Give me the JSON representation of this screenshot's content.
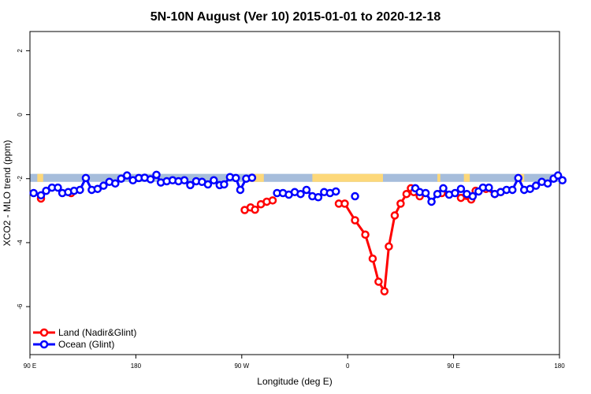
{
  "chart_data": {
    "type": "line",
    "title": "5N-10N August (Ver 10)   2015-01-01 to 2020-12-18",
    "xlabel": "Longitude (deg E)",
    "ylabel": "XCO2 - MLO trend (ppm)",
    "xlim": [
      90,
      450
    ],
    "ylim": [
      -7.5,
      2.6
    ],
    "x_ticks": [
      {
        "value": 90,
        "label": "90 E"
      },
      {
        "value": 162,
        "label": "180"
      },
      {
        "value": 234,
        "label": "90 W"
      },
      {
        "value": 306,
        "label": "0"
      },
      {
        "value": 378,
        "label": "90 E"
      },
      {
        "value": 450,
        "label": "180"
      }
    ],
    "y_ticks": [
      {
        "value": -6,
        "label": "-6"
      },
      {
        "value": -4,
        "label": "-4"
      },
      {
        "value": -2,
        "label": "-2"
      },
      {
        "value": 0,
        "label": "0"
      },
      {
        "value": 2,
        "label": "2"
      }
    ],
    "land_band": {
      "y_top": -1.85,
      "y_bottom": -2.1,
      "ocean_color": "#a6bddb",
      "land_color": "#fdd87a",
      "land_segments": [
        [
          95,
          99
        ],
        [
          239,
          249
        ],
        [
          282,
          330
        ],
        [
          367,
          369
        ],
        [
          385,
          389
        ],
        [
          422,
          426
        ]
      ]
    },
    "legend": {
      "position": "bottom-left"
    },
    "series": [
      {
        "name": "Land (Nadir&Glint)",
        "color": "#ff0000",
        "points": [
          [
            97.5,
            -2.62
          ],
          [
            118,
            -2.45
          ],
          [
            236,
            -2.98
          ],
          [
            240,
            -2.9
          ],
          [
            243,
            -2.97
          ],
          [
            247,
            -2.8
          ],
          [
            251,
            -2.72
          ],
          [
            255,
            -2.68
          ],
          [
            300,
            -2.78
          ],
          [
            304,
            -2.78
          ],
          [
            311,
            -3.3
          ],
          [
            318,
            -3.75
          ],
          [
            323,
            -4.5
          ],
          [
            327,
            -5.22
          ],
          [
            331,
            -5.52
          ],
          [
            334,
            -4.12
          ],
          [
            338,
            -3.15
          ],
          [
            342,
            -2.78
          ],
          [
            346,
            -2.48
          ],
          [
            349,
            -2.3
          ],
          [
            351,
            -2.42
          ],
          [
            355,
            -2.55
          ],
          [
            370,
            -2.45
          ],
          [
            383,
            -2.6
          ],
          [
            390,
            -2.65
          ],
          [
            393,
            -2.38
          ],
          [
            400,
            -2.32
          ],
          [
            406,
            -2.48
          ],
          [
            410,
            -2.42
          ]
        ]
      },
      {
        "name": "Ocean (Glint)",
        "color": "#0000ff",
        "points": [
          [
            92.5,
            -2.45
          ],
          [
            97.5,
            -2.52
          ],
          [
            101,
            -2.38
          ],
          [
            105,
            -2.28
          ],
          [
            109,
            -2.28
          ],
          [
            112,
            -2.45
          ],
          [
            116,
            -2.42
          ],
          [
            120,
            -2.38
          ],
          [
            124,
            -2.35
          ],
          [
            128,
            -1.98
          ],
          [
            132,
            -2.35
          ],
          [
            136,
            -2.32
          ],
          [
            140,
            -2.22
          ],
          [
            144,
            -2.1
          ],
          [
            148,
            -2.15
          ],
          [
            152,
            -2.0
          ],
          [
            156,
            -1.9
          ],
          [
            160,
            -2.05
          ],
          [
            164,
            -1.98
          ],
          [
            168,
            -1.97
          ],
          [
            172,
            -2.02
          ],
          [
            176,
            -1.88
          ],
          [
            179,
            -2.12
          ],
          [
            183,
            -2.08
          ],
          [
            187,
            -2.05
          ],
          [
            191,
            -2.08
          ],
          [
            195,
            -2.05
          ],
          [
            199,
            -2.2
          ],
          [
            203,
            -2.08
          ],
          [
            207,
            -2.1
          ],
          [
            211,
            -2.18
          ],
          [
            215,
            -2.05
          ],
          [
            219,
            -2.2
          ],
          [
            222,
            -2.18
          ],
          [
            226,
            -1.95
          ],
          [
            230,
            -1.98
          ],
          [
            233,
            -2.35
          ],
          [
            237,
            -2.0
          ],
          [
            241,
            -1.97
          ],
          [
            258,
            -2.45
          ],
          [
            262,
            -2.45
          ],
          [
            266,
            -2.5
          ],
          [
            270,
            -2.42
          ],
          [
            274,
            -2.48
          ],
          [
            278,
            -2.35
          ],
          [
            282,
            -2.55
          ],
          [
            286,
            -2.58
          ],
          [
            290,
            -2.42
          ],
          [
            294,
            -2.45
          ],
          [
            298,
            -2.4
          ],
          [
            311,
            -2.55
          ],
          [
            352,
            -2.3
          ],
          [
            355,
            -2.42
          ],
          [
            359,
            -2.45
          ],
          [
            363,
            -2.72
          ],
          [
            367,
            -2.48
          ],
          [
            371,
            -2.3
          ],
          [
            375,
            -2.5
          ],
          [
            379,
            -2.45
          ],
          [
            383,
            -2.32
          ],
          [
            387,
            -2.48
          ],
          [
            391,
            -2.55
          ],
          [
            395,
            -2.4
          ],
          [
            398,
            -2.28
          ],
          [
            402,
            -2.28
          ],
          [
            406,
            -2.48
          ],
          [
            410,
            -2.42
          ],
          [
            414,
            -2.35
          ],
          [
            418,
            -2.35
          ],
          [
            422,
            -1.98
          ],
          [
            426,
            -2.35
          ],
          [
            430,
            -2.32
          ],
          [
            434,
            -2.22
          ],
          [
            438,
            -2.1
          ],
          [
            442,
            -2.15
          ],
          [
            446,
            -2.0
          ],
          [
            449,
            -1.9
          ],
          [
            452,
            -2.05
          ]
        ]
      }
    ]
  }
}
